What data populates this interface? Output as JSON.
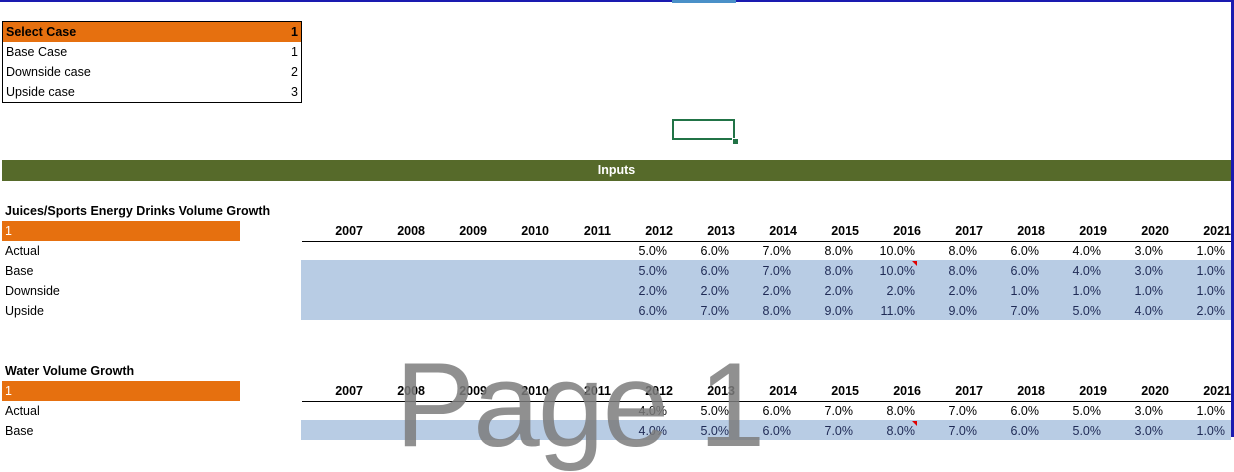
{
  "select_case": {
    "header_label": "Select Case",
    "header_value": "1",
    "options": [
      {
        "label": "Base Case",
        "value": "1"
      },
      {
        "label": "Downside case",
        "value": "2"
      },
      {
        "label": "Upside case",
        "value": "3"
      }
    ]
  },
  "banner": "Inputs",
  "colors": {
    "orange": "#e6700f",
    "olive": "#566a2a",
    "blue_band": "#b8cce4",
    "selection": "#217346"
  },
  "years": [
    "2007",
    "2008",
    "2009",
    "2010",
    "2011",
    "2012",
    "2013",
    "2014",
    "2015",
    "2016",
    "2017",
    "2018",
    "2019",
    "2020",
    "2021"
  ],
  "sections": [
    {
      "title": "Juices/Sports Energy Drinks Volume Growth",
      "selector_value": "1",
      "rows": [
        {
          "label": "Actual",
          "values": [
            "",
            "",
            "",
            "",
            "",
            "5.0%",
            "6.0%",
            "7.0%",
            "8.0%",
            "10.0%",
            "8.0%",
            "6.0%",
            "4.0%",
            "3.0%",
            "1.0%"
          ]
        },
        {
          "label": "Base",
          "values": [
            "",
            "",
            "",
            "",
            "",
            "5.0%",
            "6.0%",
            "7.0%",
            "8.0%",
            "10.0%",
            "8.0%",
            "6.0%",
            "4.0%",
            "3.0%",
            "1.0%"
          ]
        },
        {
          "label": "Downside",
          "values": [
            "",
            "",
            "",
            "",
            "",
            "2.0%",
            "2.0%",
            "2.0%",
            "2.0%",
            "2.0%",
            "2.0%",
            "1.0%",
            "1.0%",
            "1.0%",
            "1.0%"
          ]
        },
        {
          "label": "Upside",
          "values": [
            "",
            "",
            "",
            "",
            "",
            "6.0%",
            "7.0%",
            "8.0%",
            "9.0%",
            "11.0%",
            "9.0%",
            "7.0%",
            "5.0%",
            "4.0%",
            "2.0%"
          ]
        }
      ]
    },
    {
      "title": "Water Volume Growth",
      "selector_value": "1",
      "rows": [
        {
          "label": "Actual",
          "values": [
            "",
            "",
            "",
            "",
            "",
            "4.0%",
            "5.0%",
            "6.0%",
            "7.0%",
            "8.0%",
            "7.0%",
            "6.0%",
            "5.0%",
            "3.0%",
            "1.0%"
          ]
        },
        {
          "label": "Base",
          "values": [
            "",
            "",
            "",
            "",
            "",
            "4.0%",
            "5.0%",
            "6.0%",
            "7.0%",
            "8.0%",
            "7.0%",
            "6.0%",
            "5.0%",
            "3.0%",
            "1.0%"
          ]
        }
      ]
    }
  ],
  "watermark": "Page 1"
}
